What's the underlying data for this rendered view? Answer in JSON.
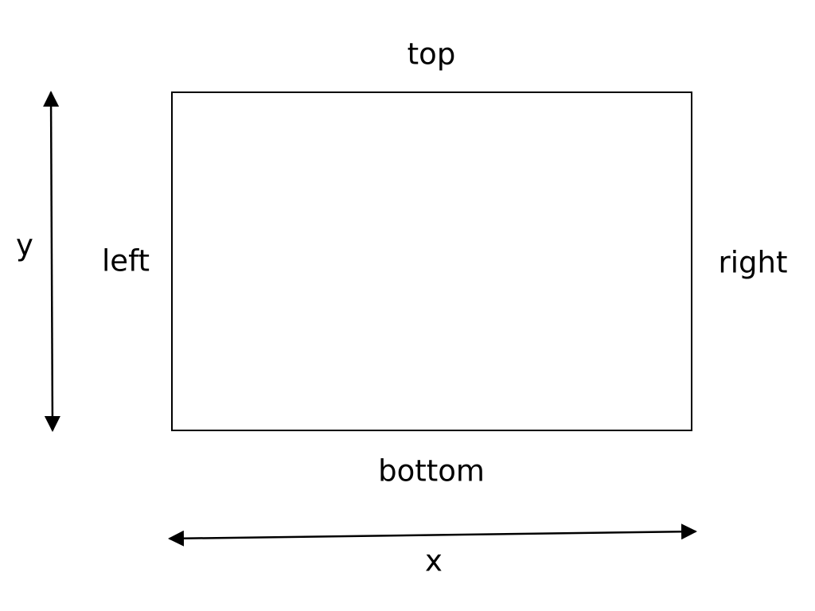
{
  "labels": {
    "top": "top",
    "bottom": "bottom",
    "left": "left",
    "right": "right",
    "y_axis": "y",
    "x_axis": "x"
  },
  "colors": {
    "stroke": "#000000",
    "background": "#ffffff"
  }
}
